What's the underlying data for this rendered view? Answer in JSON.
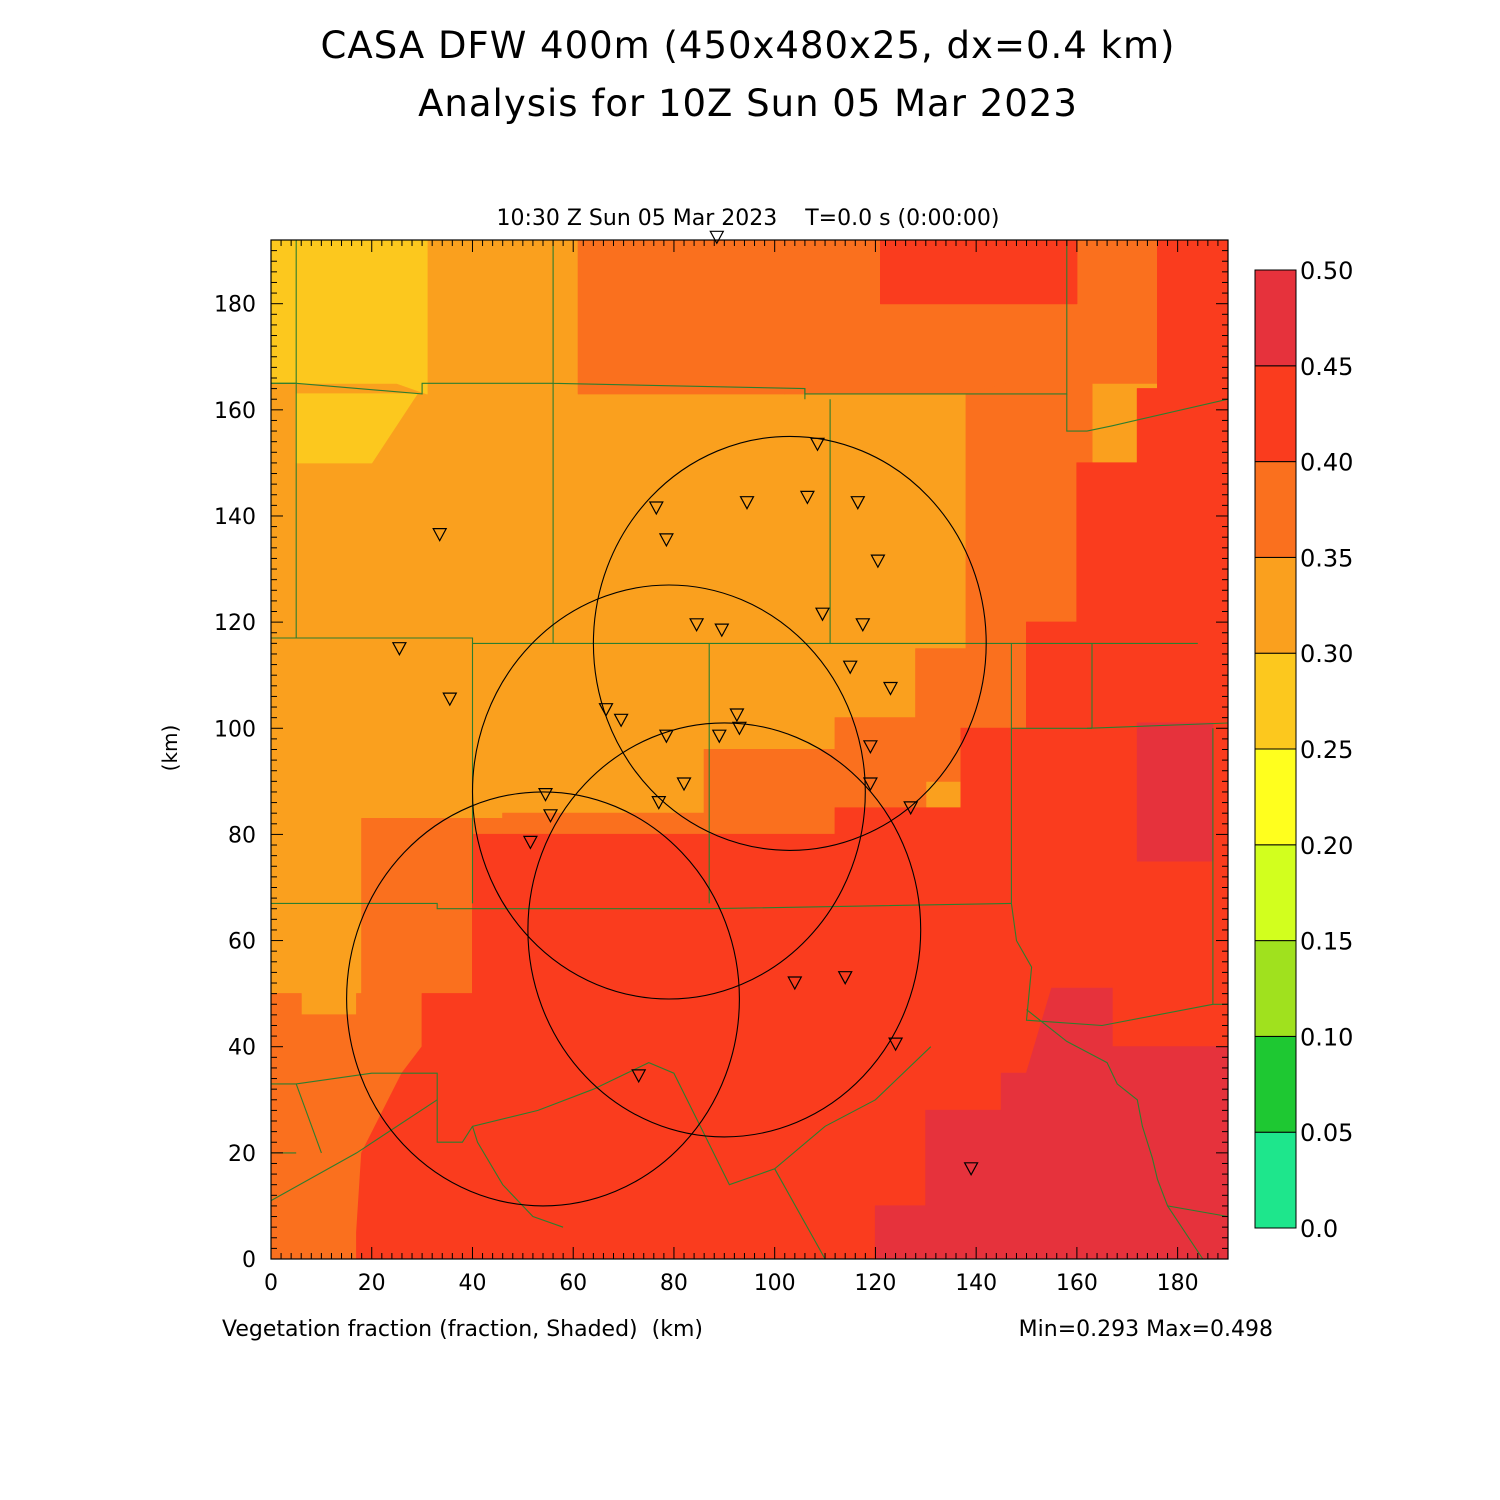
{
  "title": {
    "line1": "CASA DFW 400m (450x480x25, dx=0.4 km)",
    "line2": "Analysis for 10Z Sun 05 Mar 2023"
  },
  "subtitle": "10:30 Z Sun 05 Mar 2023    T=0.0 s (0:00:00)",
  "footer": {
    "field_label": "Vegetation fraction (fraction, Shaded)  (km)",
    "minmax": "Min=0.293 Max=0.498"
  },
  "axes": {
    "ylabel": "(km)",
    "x_range": [
      0,
      190
    ],
    "y_range": [
      0,
      192
    ],
    "x_ticks": [
      0,
      20,
      40,
      60,
      80,
      100,
      120,
      140,
      160,
      180
    ],
    "y_ticks": [
      0,
      20,
      40,
      60,
      80,
      100,
      120,
      140,
      160,
      180
    ]
  },
  "colorbar": {
    "labels": [
      "0.0",
      "0.05",
      "0.10",
      "0.15",
      "0.20",
      "0.25",
      "0.30",
      "0.35",
      "0.40",
      "0.45",
      "0.50"
    ],
    "colors": [
      "#1ee68c",
      "#1ec832",
      "#a0e11e",
      "#d2ff1e",
      "#ffff1e",
      "#fcc81e",
      "#faa01e",
      "#fa701e",
      "#fa3c1e",
      "#e6323c"
    ]
  },
  "regions": [
    {
      "level": 0.3,
      "color": "#faa01e",
      "poly": [
        [
          0,
          0
        ],
        [
          190,
          0
        ],
        [
          190,
          192
        ],
        [
          0,
          192
        ]
      ]
    },
    {
      "level": 0.25,
      "color": "#fcc81e",
      "poly": [
        [
          0,
          165
        ],
        [
          25,
          165
        ],
        [
          31,
          163
        ],
        [
          31,
          192
        ],
        [
          0,
          192
        ]
      ]
    },
    {
      "level": 0.25,
      "color": "#fcc81e",
      "poly": [
        [
          5,
          150
        ],
        [
          20,
          150
        ],
        [
          29,
          163
        ],
        [
          5,
          163
        ]
      ]
    },
    {
      "level": 0.35,
      "color": "#fa701e",
      "poly": [
        [
          61,
          163
        ],
        [
          102,
          163
        ],
        [
          102,
          192
        ],
        [
          61,
          192
        ]
      ]
    },
    {
      "level": 0.35,
      "color": "#fa701e",
      "poly": [
        [
          102,
          163
        ],
        [
          150,
          163
        ],
        [
          150,
          192
        ],
        [
          102,
          192
        ]
      ]
    },
    {
      "level": 0.35,
      "color": "#fa701e",
      "poly": [
        [
          146,
          192
        ],
        [
          178,
          192
        ],
        [
          178,
          165
        ],
        [
          146,
          165
        ]
      ]
    },
    {
      "level": 0.35,
      "color": "#fa701e",
      "poly": [
        [
          138,
          163
        ],
        [
          146,
          165
        ],
        [
          163,
          165
        ],
        [
          163,
          115
        ],
        [
          138,
          115
        ]
      ]
    },
    {
      "level": 0.35,
      "color": "#fa701e",
      "poly": [
        [
          0,
          0
        ],
        [
          17,
          0
        ],
        [
          17,
          5
        ],
        [
          22,
          14
        ],
        [
          30,
          30
        ],
        [
          30,
          40
        ],
        [
          28,
          46
        ],
        [
          6,
          46
        ],
        [
          6,
          50
        ],
        [
          0,
          50
        ]
      ]
    },
    {
      "level": 0.35,
      "color": "#fa701e",
      "poly": [
        [
          17,
          30
        ],
        [
          40,
          30
        ],
        [
          40,
          50
        ],
        [
          17,
          50
        ]
      ]
    },
    {
      "level": 0.35,
      "color": "#fa701e",
      "poly": [
        [
          18,
          40
        ],
        [
          46,
          40
        ],
        [
          46,
          83
        ],
        [
          18,
          83
        ]
      ]
    },
    {
      "level": 0.35,
      "color": "#fa701e",
      "poly": [
        [
          46,
          67
        ],
        [
          112,
          67
        ],
        [
          112,
          84
        ],
        [
          46,
          84
        ]
      ]
    },
    {
      "level": 0.35,
      "color": "#fa701e",
      "poly": [
        [
          86,
          84
        ],
        [
          112,
          84
        ],
        [
          112,
          96
        ],
        [
          86,
          96
        ]
      ]
    },
    {
      "level": 0.35,
      "color": "#fa701e",
      "poly": [
        [
          112,
          75
        ],
        [
          130,
          75
        ],
        [
          130,
          102
        ],
        [
          112,
          102
        ]
      ]
    },
    {
      "level": 0.35,
      "color": "#fa701e",
      "poly": [
        [
          128,
          90
        ],
        [
          148,
          90
        ],
        [
          148,
          115
        ],
        [
          128,
          115
        ]
      ]
    },
    {
      "level": 0.35,
      "color": "#fa701e",
      "poly": [
        [
          148,
          95
        ],
        [
          163,
          95
        ],
        [
          163,
          120
        ],
        [
          148,
          120
        ]
      ]
    },
    {
      "level": 0.4,
      "color": "#fa3c1e",
      "poly": [
        [
          121,
          192
        ],
        [
          160,
          192
        ],
        [
          160,
          180
        ],
        [
          121,
          180
        ]
      ]
    },
    {
      "level": 0.4,
      "color": "#fa3c1e",
      "poly": [
        [
          176,
          0
        ],
        [
          190,
          0
        ],
        [
          190,
          192
        ],
        [
          176,
          192
        ],
        [
          176,
          164
        ],
        [
          172,
          164
        ],
        [
          172,
          150
        ],
        [
          160,
          150
        ],
        [
          160,
          120
        ],
        [
          150,
          120
        ],
        [
          150,
          100
        ],
        [
          137,
          100
        ],
        [
          137,
          85
        ],
        [
          112,
          85
        ],
        [
          112,
          80
        ],
        [
          40,
          80
        ],
        [
          40,
          50
        ],
        [
          30,
          50
        ],
        [
          30,
          40
        ],
        [
          26,
          35
        ],
        [
          18,
          20
        ],
        [
          17,
          5
        ],
        [
          17,
          0
        ]
      ]
    },
    {
      "level": 0.45,
      "color": "#e6323c",
      "poly": [
        [
          50,
          0
        ],
        [
          130,
          0
        ],
        [
          130,
          28
        ],
        [
          145,
          28
        ],
        [
          145,
          35
        ],
        [
          150,
          35
        ],
        [
          155,
          51
        ],
        [
          167,
          51
        ],
        [
          167,
          40
        ],
        [
          190,
          40
        ],
        [
          190,
          0
        ]
      ]
    },
    {
      "level": 0.45,
      "color": "#e6323c",
      "poly": [
        [
          120,
          0
        ],
        [
          190,
          0
        ],
        [
          190,
          10
        ],
        [
          120,
          10
        ]
      ]
    },
    {
      "level": 0.45,
      "color": "#e6323c",
      "poly": [
        [
          172,
          75
        ],
        [
          187,
          75
        ],
        [
          187,
          101
        ],
        [
          172,
          101
        ]
      ]
    }
  ],
  "boundaries": [
    [
      [
        5,
        192
      ],
      [
        5,
        165
      ],
      [
        0,
        165
      ]
    ],
    [
      [
        0,
        165
      ],
      [
        5,
        165
      ],
      [
        30,
        163
      ],
      [
        30,
        165
      ],
      [
        56,
        165
      ]
    ],
    [
      [
        56,
        192
      ],
      [
        56,
        165
      ],
      [
        106,
        164
      ],
      [
        106,
        162
      ]
    ],
    [
      [
        106,
        164
      ],
      [
        106,
        163
      ],
      [
        158,
        163
      ],
      [
        158,
        192
      ]
    ],
    [
      [
        158,
        163
      ],
      [
        158,
        156
      ],
      [
        162,
        156
      ]
    ],
    [
      [
        162,
        156
      ],
      [
        167,
        157
      ],
      [
        190,
        162
      ]
    ],
    [
      [
        5,
        165
      ],
      [
        5,
        117
      ],
      [
        0,
        117
      ]
    ],
    [
      [
        56,
        165
      ],
      [
        56,
        116
      ]
    ],
    [
      [
        111,
        162
      ],
      [
        111,
        116
      ]
    ],
    [
      [
        0,
        117
      ],
      [
        40,
        117
      ],
      [
        40,
        116
      ],
      [
        184,
        116
      ]
    ],
    [
      [
        40,
        116
      ],
      [
        40,
        67
      ]
    ],
    [
      [
        87,
        116
      ],
      [
        87,
        67
      ]
    ],
    [
      [
        147,
        116
      ],
      [
        147,
        67
      ]
    ],
    [
      [
        163,
        116
      ],
      [
        163,
        100
      ]
    ],
    [
      [
        162,
        100
      ],
      [
        190,
        101
      ]
    ],
    [
      [
        147,
        100
      ],
      [
        161,
        100
      ],
      [
        163,
        100
      ]
    ],
    [
      [
        0,
        67
      ],
      [
        33,
        67
      ],
      [
        33,
        66
      ],
      [
        87,
        66
      ],
      [
        147,
        67
      ]
    ],
    [
      [
        187,
        100
      ],
      [
        187,
        48
      ],
      [
        190,
        48
      ]
    ],
    [
      [
        147,
        67
      ],
      [
        148,
        60
      ],
      [
        151,
        55
      ],
      [
        150,
        45
      ],
      [
        165,
        44
      ],
      [
        187,
        48
      ]
    ],
    [
      [
        150,
        47
      ],
      [
        158,
        41
      ],
      [
        166,
        37
      ],
      [
        168,
        33
      ],
      [
        172,
        30
      ],
      [
        173,
        25
      ],
      [
        175,
        19
      ],
      [
        176,
        15
      ],
      [
        178,
        10
      ],
      [
        190,
        8
      ]
    ],
    [
      [
        0,
        33
      ],
      [
        5,
        33
      ],
      [
        20,
        35
      ],
      [
        33,
        35
      ],
      [
        33,
        31
      ],
      [
        33,
        22
      ],
      [
        38,
        22
      ],
      [
        40,
        25
      ],
      [
        53,
        28
      ],
      [
        64,
        32
      ],
      [
        75,
        37
      ],
      [
        80,
        35
      ],
      [
        91,
        14
      ],
      [
        100,
        17
      ],
      [
        110,
        25
      ],
      [
        120,
        30
      ],
      [
        131,
        40
      ]
    ],
    [
      [
        0,
        11
      ],
      [
        17,
        20
      ],
      [
        33,
        30
      ]
    ],
    [
      [
        5,
        33
      ],
      [
        10,
        20
      ]
    ],
    [
      [
        0,
        20
      ],
      [
        5,
        20
      ]
    ],
    [
      [
        40,
        25
      ],
      [
        41,
        22
      ],
      [
        46,
        14
      ],
      [
        52,
        8
      ],
      [
        58,
        6
      ]
    ],
    [
      [
        100,
        17
      ],
      [
        110,
        0
      ]
    ],
    [
      [
        178,
        10
      ],
      [
        185,
        0
      ]
    ]
  ],
  "range_rings": [
    {
      "center": [
        103,
        116
      ],
      "radius_km": 39
    },
    {
      "center": [
        79,
        88
      ],
      "radius_km": 39
    },
    {
      "center": [
        90,
        62
      ],
      "radius_km": 39
    },
    {
      "center": [
        54,
        49
      ],
      "radius_km": 39
    }
  ],
  "stations": [
    [
      88.5,
      192.5
    ],
    [
      108.5,
      153.5
    ],
    [
      33.5,
      136.5
    ],
    [
      76.5,
      141.5
    ],
    [
      78.5,
      135.5
    ],
    [
      94.5,
      142.5
    ],
    [
      106.5,
      143.5
    ],
    [
      116.5,
      142.5
    ],
    [
      120.5,
      131.5
    ],
    [
      84.5,
      119.5
    ],
    [
      89.5,
      118.5
    ],
    [
      109.5,
      121.5
    ],
    [
      117.5,
      119.5
    ],
    [
      25.5,
      115
    ],
    [
      35.5,
      105.5
    ],
    [
      115,
      111.5
    ],
    [
      123,
      107.5
    ],
    [
      66.5,
      103.5
    ],
    [
      69.5,
      101.5
    ],
    [
      78.5,
      98.5
    ],
    [
      89,
      98.5
    ],
    [
      92.5,
      102.5
    ],
    [
      93,
      100
    ],
    [
      119,
      96.5
    ],
    [
      54.5,
      87.5
    ],
    [
      55.5,
      83.5
    ],
    [
      51.5,
      78.5
    ],
    [
      77,
      86
    ],
    [
      82,
      89.5
    ],
    [
      119,
      89.5
    ],
    [
      127,
      85
    ],
    [
      104,
      52
    ],
    [
      114,
      53
    ],
    [
      124,
      40.5
    ],
    [
      73,
      34.5
    ],
    [
      139,
      17
    ]
  ]
}
